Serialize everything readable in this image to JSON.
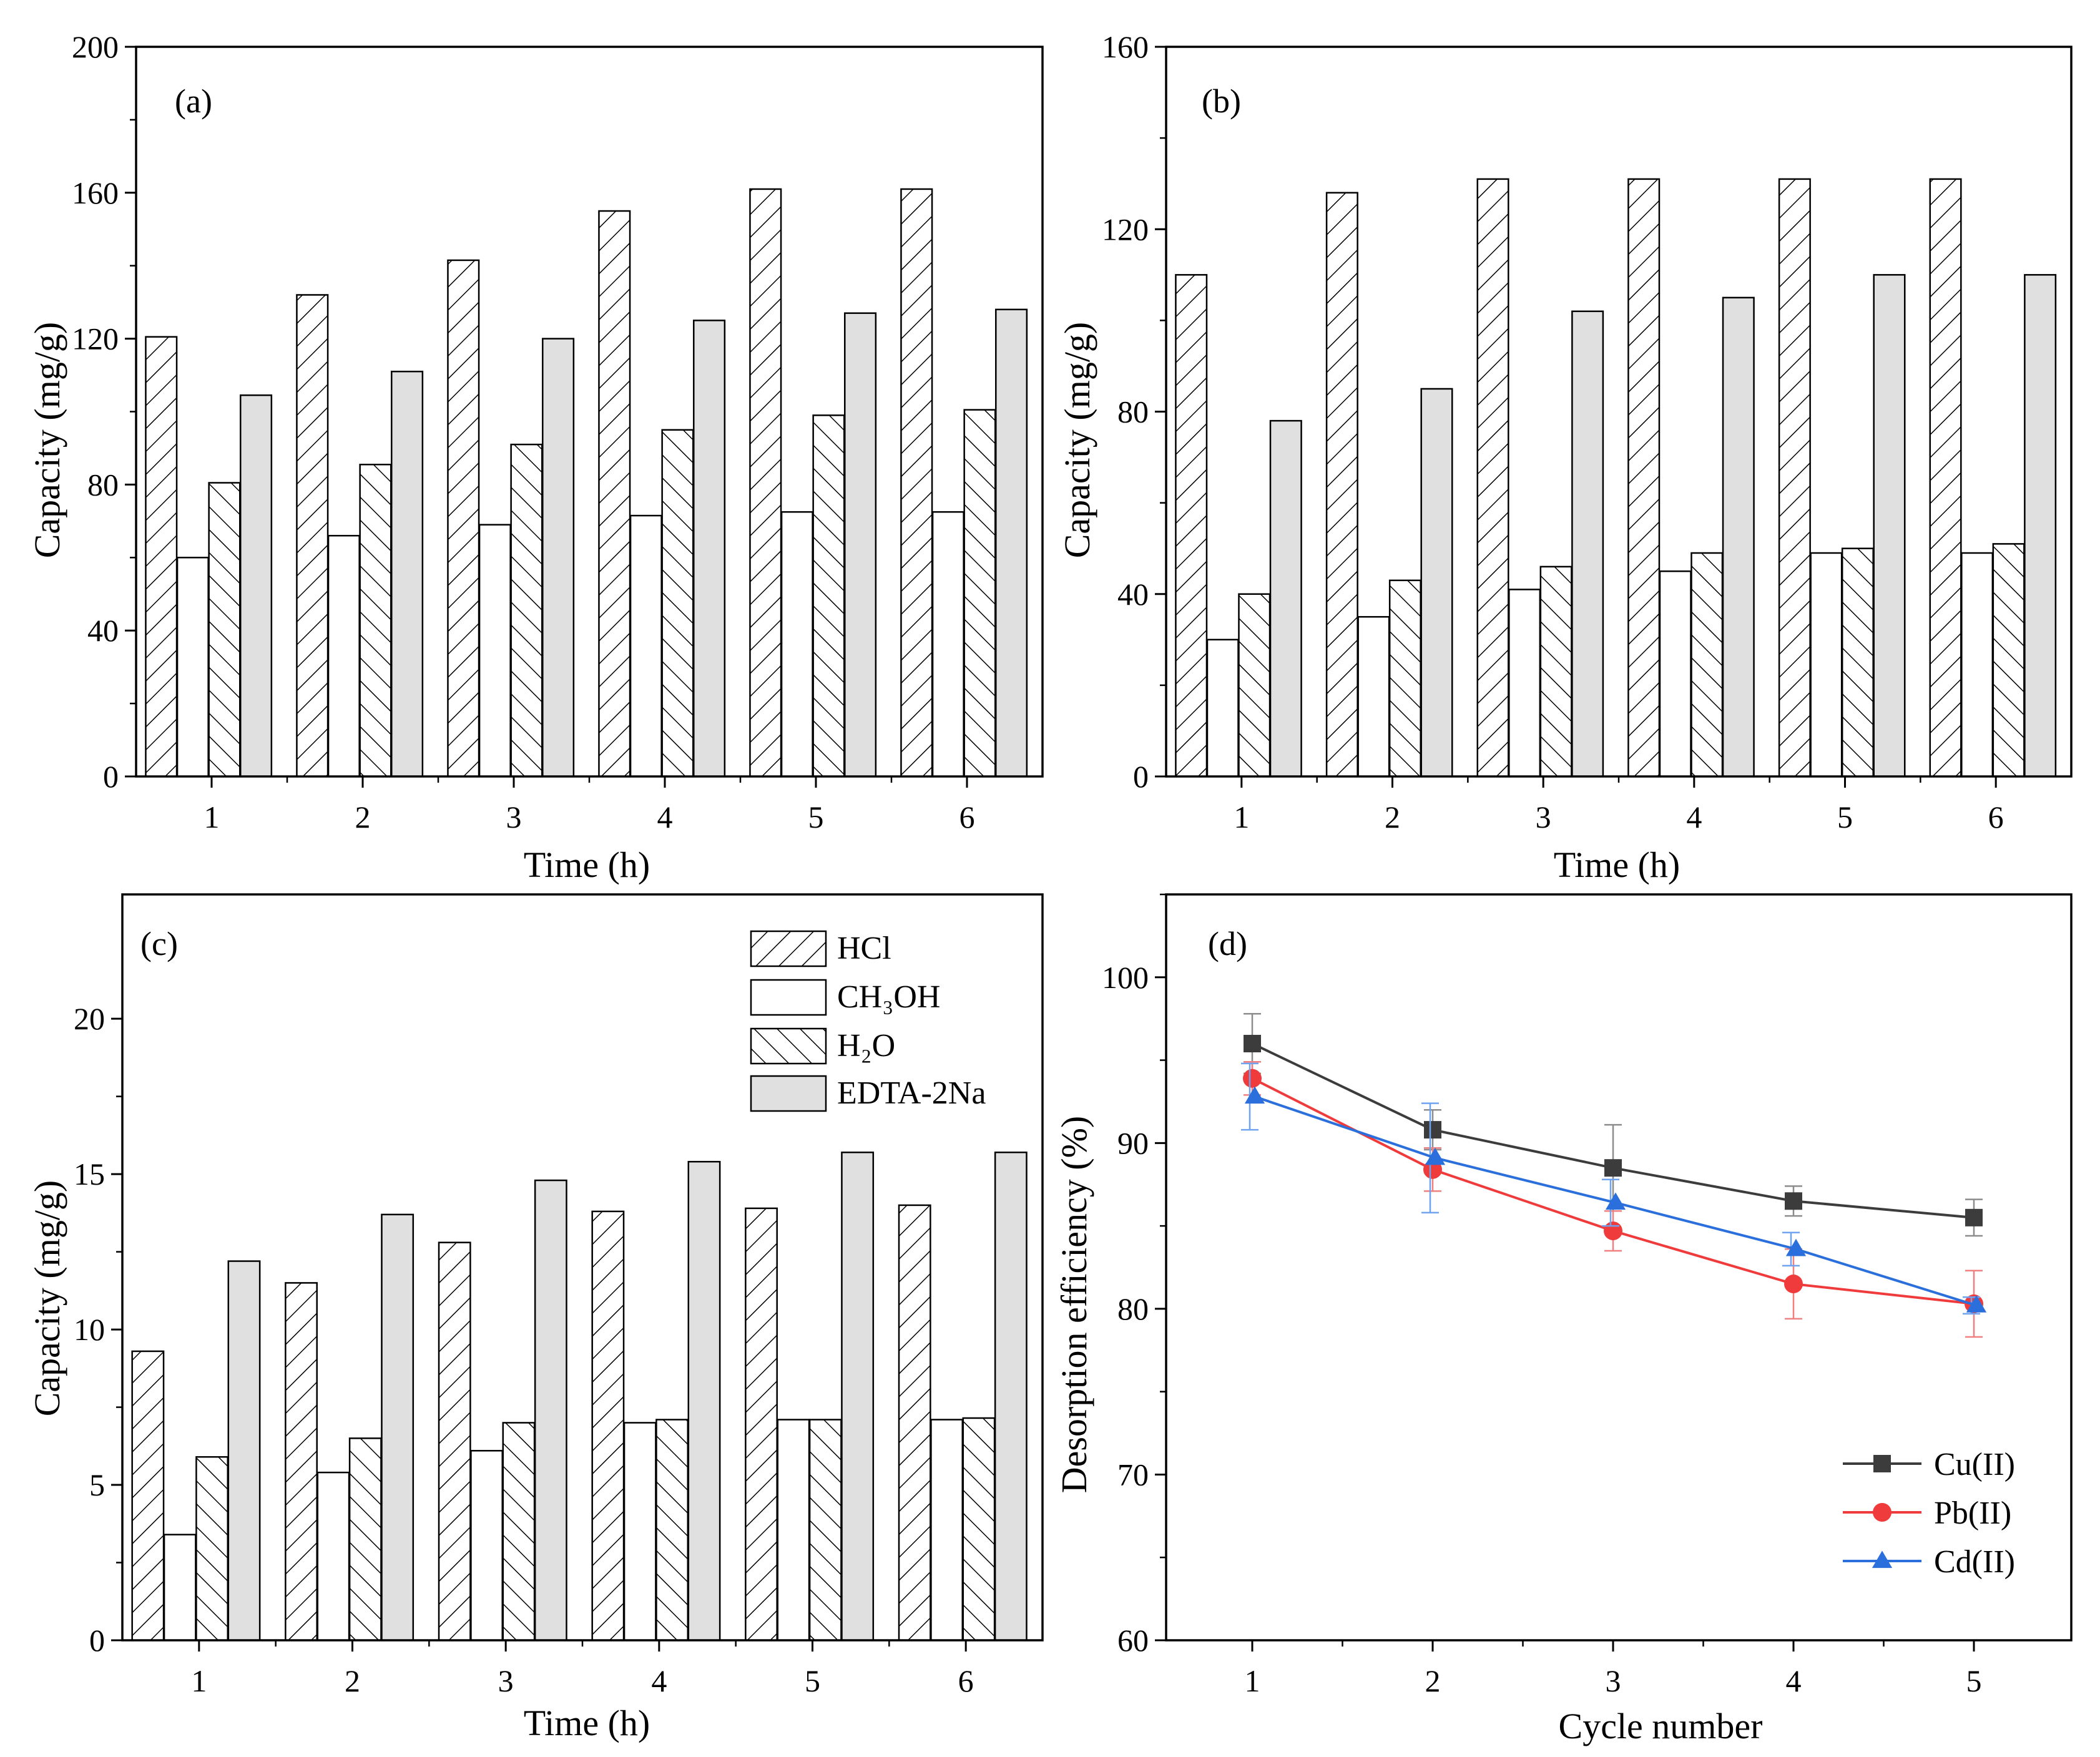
{
  "figure": {
    "colors": {
      "axis": "#000000",
      "bar_fill_edta": "#e0e0e0",
      "hatch": "#000000",
      "cu": "#3c3c3c",
      "pb": "#ef3b3b",
      "cd": "#2a6fdb",
      "cu_err": "#8c8c8c",
      "pb_err": "#f08080",
      "cd_err": "#6fa3f0"
    }
  },
  "chart_data": [
    {
      "panel": "(a)",
      "type": "bar",
      "xlabel": "Time (h)",
      "ylabel": "Capacity (mg/g)",
      "ylim": [
        0,
        200
      ],
      "yticks": [
        0,
        40,
        80,
        120,
        160,
        200
      ],
      "categories": [
        "1",
        "2",
        "3",
        "4",
        "5",
        "6"
      ],
      "series": [
        {
          "name": "HCl",
          "pattern": "hatch-right",
          "values": [
            120.5,
            132,
            141.5,
            155,
            161,
            161
          ]
        },
        {
          "name": "CH₃OH",
          "pattern": "open",
          "values": [
            60,
            66,
            69,
            71.5,
            72.5,
            72.5
          ]
        },
        {
          "name": "H₂O",
          "pattern": "hatch-left",
          "values": [
            80.5,
            85.5,
            91,
            95,
            99,
            100.5
          ]
        },
        {
          "name": "EDTA-2Na",
          "pattern": "gray",
          "values": [
            104.5,
            111,
            120,
            125,
            127,
            128
          ]
        }
      ]
    },
    {
      "panel": "(b)",
      "type": "bar",
      "xlabel": "Time (h)",
      "ylabel": "Capacity (mg/g)",
      "ylim": [
        0,
        160
      ],
      "yticks": [
        0,
        40,
        80,
        120,
        160
      ],
      "categories": [
        "1",
        "2",
        "3",
        "4",
        "5",
        "6"
      ],
      "series": [
        {
          "name": "HCl",
          "pattern": "hatch-right",
          "values": [
            110,
            128,
            131,
            131,
            131,
            131
          ]
        },
        {
          "name": "CH₃OH",
          "pattern": "open",
          "values": [
            30,
            35,
            41,
            45,
            49,
            49
          ]
        },
        {
          "name": "H₂O",
          "pattern": "hatch-left",
          "values": [
            40,
            43,
            46,
            49,
            50,
            51
          ]
        },
        {
          "name": "EDTA-2Na",
          "pattern": "gray",
          "values": [
            78,
            85,
            102,
            105,
            110,
            110
          ]
        }
      ]
    },
    {
      "panel": "(c)",
      "type": "bar",
      "xlabel": "Time (h)",
      "ylabel": "Capacity (mg/g)",
      "ylim": [
        0,
        24
      ],
      "yticks": [
        0,
        5,
        10,
        15,
        20
      ],
      "categories": [
        "1",
        "2",
        "3",
        "4",
        "5",
        "6"
      ],
      "legend": {
        "position": "top-right",
        "entries": [
          "HCl",
          "CH₃OH",
          "H₂O",
          "EDTA-2Na"
        ]
      },
      "series": [
        {
          "name": "HCl",
          "pattern": "hatch-right",
          "values": [
            9.3,
            11.5,
            12.8,
            13.8,
            13.9,
            14.0
          ]
        },
        {
          "name": "CH₃OH",
          "pattern": "open",
          "values": [
            3.4,
            5.4,
            6.1,
            7.0,
            7.1,
            7.1
          ]
        },
        {
          "name": "H₂O",
          "pattern": "hatch-left",
          "values": [
            5.9,
            6.5,
            7.0,
            7.1,
            7.1,
            7.15
          ]
        },
        {
          "name": "EDTA-2Na",
          "pattern": "gray",
          "values": [
            12.2,
            13.7,
            14.8,
            15.4,
            15.7,
            15.7
          ]
        }
      ]
    },
    {
      "panel": "(d)",
      "type": "line",
      "xlabel": "Cycle number",
      "ylabel": "Desorption efficiency (%)",
      "ylim": [
        60,
        105
      ],
      "yticks": [
        60,
        70,
        80,
        90,
        100
      ],
      "x": [
        1,
        2,
        3,
        4,
        5
      ],
      "xticks": [
        "1",
        "2",
        "3",
        "4",
        "5"
      ],
      "legend": {
        "position": "bottom-right",
        "entries": [
          "Cu(II)",
          "Pb(II)",
          "Cd(II)"
        ]
      },
      "series": [
        {
          "name": "Cu(II)",
          "marker": "square",
          "color": "#3c3c3c",
          "err_color": "#8c8c8c",
          "values": [
            96.0,
            90.8,
            88.5,
            86.5,
            85.5
          ],
          "errors": [
            1.8,
            1.2,
            2.6,
            0.9,
            1.1
          ]
        },
        {
          "name": "Pb(II)",
          "marker": "circle",
          "color": "#ef3b3b",
          "err_color": "#f08080",
          "values": [
            93.9,
            88.4,
            84.7,
            81.5,
            80.3
          ],
          "errors": [
            1.0,
            1.3,
            1.2,
            2.1,
            2.0
          ]
        },
        {
          "name": "Cd(II)",
          "marker": "triangle",
          "color": "#2a6fdb",
          "err_color": "#6fa3f0",
          "values": [
            92.8,
            89.1,
            86.4,
            83.6,
            80.2
          ],
          "errors": [
            2.0,
            3.3,
            1.4,
            1.0,
            0.5
          ]
        }
      ]
    }
  ]
}
